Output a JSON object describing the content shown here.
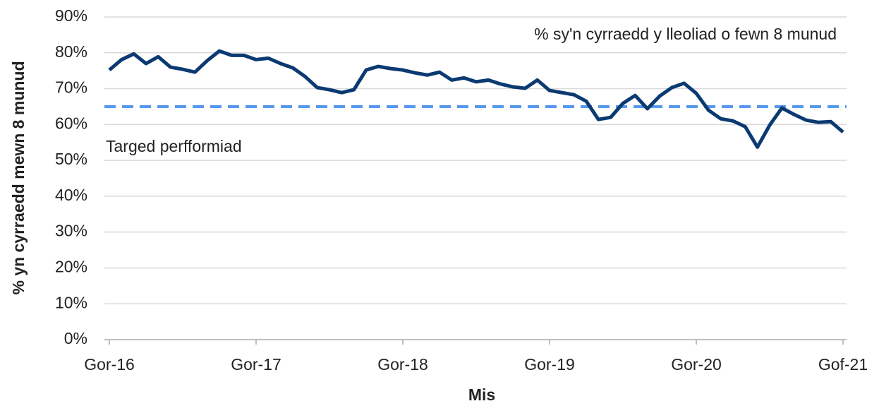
{
  "chart_data": {
    "type": "line",
    "y_label": "% yn cyrraedd mewn 8 munud",
    "x_label": "Mis",
    "categories": [
      "Gor-16",
      null,
      null,
      null,
      null,
      null,
      null,
      null,
      null,
      null,
      null,
      null,
      "Gor-17",
      null,
      null,
      null,
      null,
      null,
      null,
      null,
      null,
      null,
      null,
      null,
      "Gor-18",
      null,
      null,
      null,
      null,
      null,
      null,
      null,
      null,
      null,
      null,
      null,
      "Gor-19",
      null,
      null,
      null,
      null,
      null,
      null,
      null,
      null,
      null,
      null,
      null,
      "Gor-20",
      null,
      null,
      null,
      null,
      null,
      null,
      null,
      null,
      null,
      null,
      null,
      "Gof-21"
    ],
    "series": [
      {
        "name": "% sy'n cyrraedd y lleoliad o fewn 8 munud",
        "color": "#0b3a72",
        "values": [
          75.2,
          78.1,
          79.7,
          77.0,
          78.9,
          76.0,
          75.4,
          74.6,
          77.8,
          80.5,
          79.3,
          79.3,
          78.1,
          78.5,
          77.0,
          75.8,
          73.4,
          70.3,
          69.7,
          68.9,
          69.7,
          75.2,
          76.2,
          75.6,
          75.2,
          74.4,
          73.8,
          74.6,
          72.4,
          73.0,
          71.9,
          72.4,
          71.3,
          70.5,
          70.1,
          72.4,
          69.5,
          68.9,
          68.3,
          66.5,
          61.4,
          62.0,
          65.9,
          68.1,
          64.4,
          67.9,
          70.3,
          71.5,
          68.7,
          64.0,
          61.6,
          61.0,
          59.4,
          53.7,
          59.8,
          64.6,
          62.8,
          61.2,
          60.6,
          60.8,
          57.9
        ]
      }
    ],
    "target": {
      "label": "Targed perfformiad",
      "value": 65,
      "color": "#5599ee"
    },
    "ylim": [
      0,
      90
    ],
    "yticks": [
      {
        "value": 0,
        "label": "0%"
      },
      {
        "value": 10,
        "label": "10%"
      },
      {
        "value": 20,
        "label": "20%"
      },
      {
        "value": 30,
        "label": "30%"
      },
      {
        "value": 40,
        "label": "40%"
      },
      {
        "value": 50,
        "label": "50%"
      },
      {
        "value": 60,
        "label": "60%"
      },
      {
        "value": 70,
        "label": "70%"
      },
      {
        "value": 80,
        "label": "80%"
      },
      {
        "value": 90,
        "label": "90%"
      }
    ],
    "grid": true
  }
}
